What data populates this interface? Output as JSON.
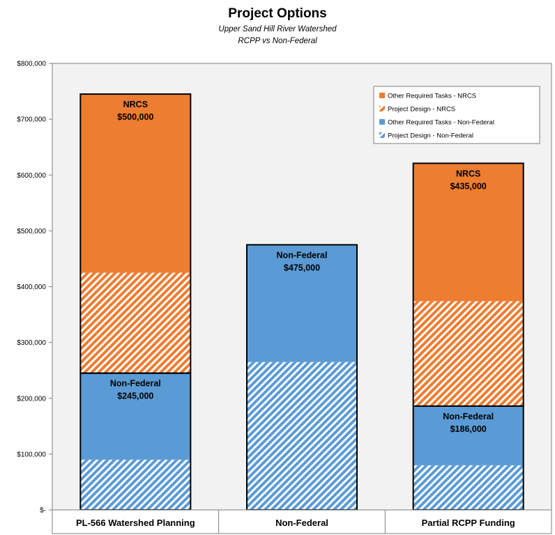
{
  "chart_data": {
    "type": "bar",
    "stacked": true,
    "title": "Project Options",
    "subtitle_lines": [
      "Upper Sand Hill River Watershed",
      "RCPP vs Non-Federal"
    ],
    "categories": [
      "PL-566 Watershed Planning",
      "Non-Federal",
      "Partial RCPP Funding"
    ],
    "series": [
      {
        "name": "Project Design - Non-Federal",
        "values": [
          90000,
          265000,
          80000
        ],
        "color": "#5b9bd5",
        "hatched": true
      },
      {
        "name": "Other Required Tasks - Non-Federal",
        "values": [
          155000,
          210000,
          106000
        ],
        "color": "#5b9bd5",
        "hatched": false
      },
      {
        "name": "Project Design - NRCS",
        "values": [
          180000,
          0,
          188000
        ],
        "color": "#ed7d31",
        "hatched": true
      },
      {
        "name": "Other Required Tasks - NRCS",
        "values": [
          320000,
          0,
          247000
        ],
        "color": "#ed7d31",
        "hatched": false
      }
    ],
    "legend_order": [
      "Other Required Tasks - NRCS",
      "Project Design - NRCS",
      "Other Required Tasks - Non-Federal",
      "Project Design - Non-Federal"
    ],
    "bar_annotations": [
      [
        {
          "label": "Non-Federal",
          "value": "$245,000"
        },
        {
          "label": "NRCS",
          "value": "$500,000"
        }
      ],
      [
        {
          "label": "Non-Federal",
          "value": "$475,000"
        }
      ],
      [
        {
          "label": "Non-Federal",
          "value": "$186,000"
        },
        {
          "label": "NRCS",
          "value": "$435,000"
        }
      ]
    ],
    "ylim": [
      0,
      800000
    ],
    "yticks": [
      0,
      100000,
      200000,
      300000,
      400000,
      500000,
      600000,
      700000,
      800000
    ],
    "ytick_labels": [
      "$-",
      "$100,000",
      "$200,000",
      "$300,000",
      "$400,000",
      "$500,000",
      "$600,000",
      "$700,000",
      "$800,000"
    ],
    "xlabel": "",
    "ylabel": "",
    "grid": false,
    "legend_position": "top-right",
    "plot_background": "#f2f2f2"
  }
}
